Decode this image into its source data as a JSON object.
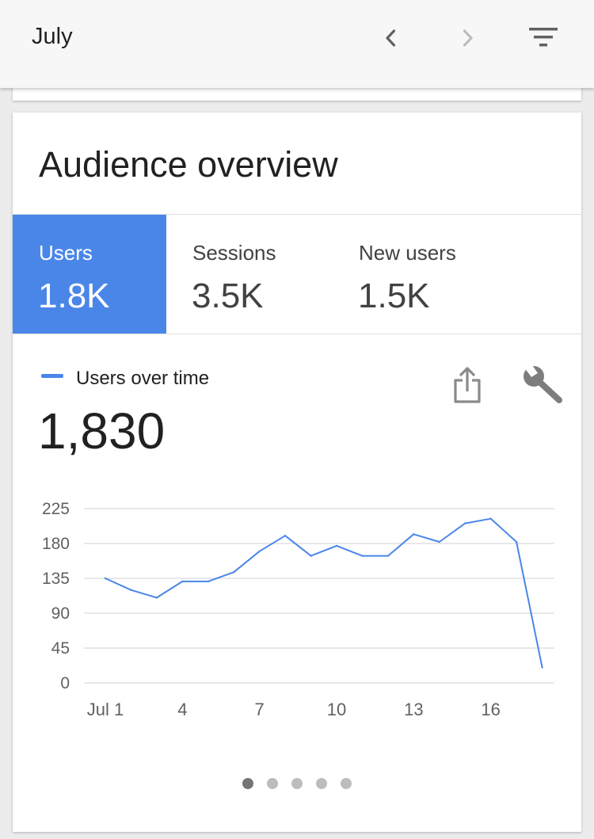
{
  "header": {
    "title": "July",
    "prev_icon": "chevron-left-icon",
    "next_icon": "chevron-right-icon",
    "filter_icon": "filter-icon"
  },
  "card": {
    "title": "Audience overview",
    "tabs": [
      {
        "label": "Users",
        "value": "1.8K",
        "active": true
      },
      {
        "label": "Sessions",
        "value": "3.5K",
        "active": false
      },
      {
        "label": "New users",
        "value": "1.5K",
        "active": false
      }
    ],
    "legend_label": "Users over time",
    "total": "1,830",
    "share_icon": "share-icon",
    "wrench_icon": "wrench-icon"
  },
  "colors": {
    "accent": "#4a86e8",
    "grid": "#e0e0e0",
    "tick_text": "#616161"
  },
  "chart_data": {
    "type": "line",
    "title": "",
    "xlabel": "",
    "ylabel": "",
    "ylim": [
      0,
      225
    ],
    "yticks": [
      225,
      180,
      135,
      90,
      45,
      0
    ],
    "xticks": [
      {
        "day": 1,
        "label": "Jul 1"
      },
      {
        "day": 4,
        "label": "4"
      },
      {
        "day": 7,
        "label": "7"
      },
      {
        "day": 10,
        "label": "10"
      },
      {
        "day": 13,
        "label": "13"
      },
      {
        "day": 16,
        "label": "16"
      }
    ],
    "x": [
      1,
      2,
      3,
      4,
      5,
      6,
      7,
      8,
      9,
      10,
      11,
      12,
      13,
      14,
      15,
      16,
      17,
      18
    ],
    "values": [
      135,
      120,
      110,
      131,
      131,
      143,
      170,
      190,
      164,
      177,
      164,
      164,
      192,
      182,
      206,
      212,
      182,
      20
    ],
    "grid": true
  },
  "pagination": {
    "count": 5,
    "active_index": 0
  }
}
